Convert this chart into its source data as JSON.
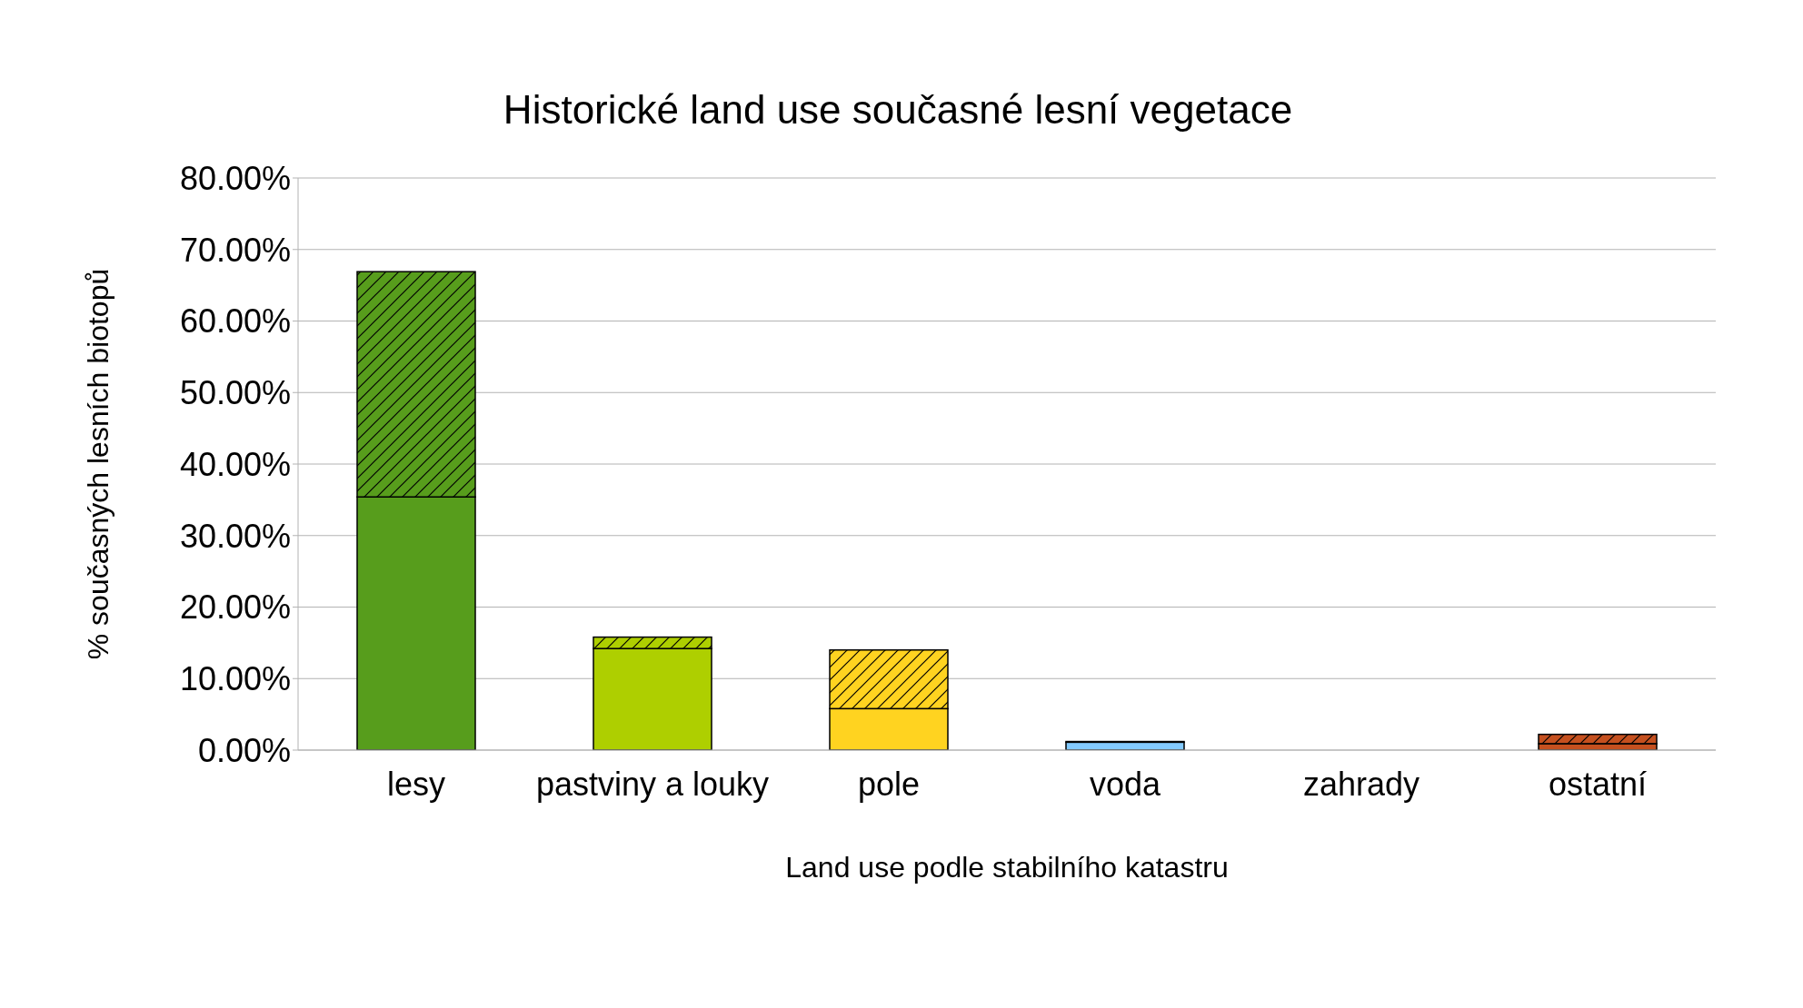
{
  "chart_data": {
    "type": "bar",
    "title": "Historické land use současné lesní vegetace",
    "xlabel": "Land use podle stabilního katastru",
    "ylabel": "% současných lesních biotopů",
    "categories": [
      "lesy",
      "pastviny a louky",
      "pole",
      "voda",
      "zahrady",
      "ostatní"
    ],
    "stacked": true,
    "series": [
      {
        "colors": [
          "#579d1c",
          "#aecf00",
          "#ffd320",
          "#83caff",
          "#7e0021",
          "#c5501f"
        ],
        "values": [
          35.4,
          14.2,
          5.8,
          1.1,
          0,
          0.9
        ]
      },
      {
        "colors": [
          "#579d1c",
          "#aecf00",
          "#ffd320",
          "#83caff",
          "#7e0021",
          "#c5501f"
        ],
        "values": [
          31.5,
          1.6,
          8.2,
          0.1,
          0,
          1.3
        ]
      }
    ],
    "ylim": [
      0,
      80
    ],
    "yticks": [
      {
        "value": 0,
        "label": "0.00%"
      },
      {
        "value": 10,
        "label": "10.00%"
      },
      {
        "value": 20,
        "label": "20.00%"
      },
      {
        "value": 30,
        "label": "30.00%"
      },
      {
        "value": 40,
        "label": "40.00%"
      },
      {
        "value": 50,
        "label": "50.00%"
      },
      {
        "value": 60,
        "label": "60.00%"
      },
      {
        "value": 70,
        "label": "70.00%"
      },
      {
        "value": 80,
        "label": "80.00%"
      }
    ],
    "grid": "y",
    "legend": false
  }
}
